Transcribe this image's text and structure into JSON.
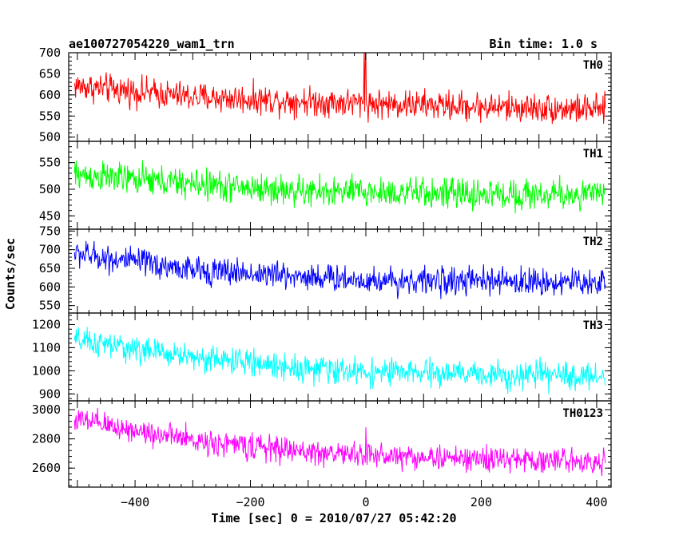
{
  "chart_data": {
    "type": "line",
    "title": "ae100727054220_wam1_trn",
    "bin_time": "Bin time: 1.0 s",
    "xlabel": "Time [sec] 0 = 2010/07/27 05:42:20",
    "ylabel": "Counts/sec",
    "xlim": [
      -515,
      425
    ],
    "x_start": -505,
    "x_end": 415,
    "x_step": 1,
    "x_ticks": [
      -400,
      -200,
      0,
      200,
      400
    ],
    "panels": [
      {
        "name": "TH0",
        "color": "#ff0000",
        "ylim": [
          490,
          700
        ],
        "yticks": [
          500,
          550,
          600,
          650,
          700
        ],
        "trend": [
          [
            -505,
            622
          ],
          [
            -300,
            595
          ],
          [
            -100,
            585
          ],
          [
            0,
            580
          ],
          [
            200,
            572
          ],
          [
            415,
            565
          ]
        ],
        "noise_amplitude": 30,
        "spikes": [
          [
            -3,
            700
          ],
          [
            -1,
            700
          ],
          [
            0,
            688
          ]
        ]
      },
      {
        "name": "TH1",
        "color": "#00ff00",
        "ylim": [
          425,
          590
        ],
        "yticks": [
          450,
          500,
          550
        ],
        "trend": [
          [
            -505,
            527
          ],
          [
            -300,
            510
          ],
          [
            -100,
            495
          ],
          [
            0,
            495
          ],
          [
            200,
            490
          ],
          [
            415,
            490
          ]
        ],
        "noise_amplitude": 25,
        "spikes": []
      },
      {
        "name": "TH2",
        "color": "#0000ff",
        "ylim": [
          530,
          755
        ],
        "yticks": [
          550,
          600,
          650,
          700,
          750
        ],
        "trend": [
          [
            -505,
            690
          ],
          [
            -300,
            645
          ],
          [
            -100,
            628
          ],
          [
            0,
            618
          ],
          [
            200,
            615
          ],
          [
            415,
            612
          ]
        ],
        "noise_amplitude": 32,
        "spikes": []
      },
      {
        "name": "TH3",
        "color": "#00ffff",
        "ylim": [
          870,
          1250
        ],
        "yticks": [
          900,
          1000,
          1100,
          1200
        ],
        "trend": [
          [
            -505,
            1130
          ],
          [
            -300,
            1060
          ],
          [
            -100,
            1010
          ],
          [
            0,
            995
          ],
          [
            200,
            985
          ],
          [
            415,
            975
          ]
        ],
        "noise_amplitude": 50,
        "spikes": []
      },
      {
        "name": "TH0123",
        "color": "#ff00ff",
        "ylim": [
          2470,
          3060
        ],
        "yticks": [
          2600,
          2800,
          3000
        ],
        "trend": [
          [
            -505,
            2930
          ],
          [
            -300,
            2790
          ],
          [
            -100,
            2710
          ],
          [
            0,
            2690
          ],
          [
            200,
            2660
          ],
          [
            415,
            2650
          ]
        ],
        "noise_amplitude": 75,
        "spikes": [
          [
            0,
            2880
          ]
        ]
      }
    ]
  }
}
